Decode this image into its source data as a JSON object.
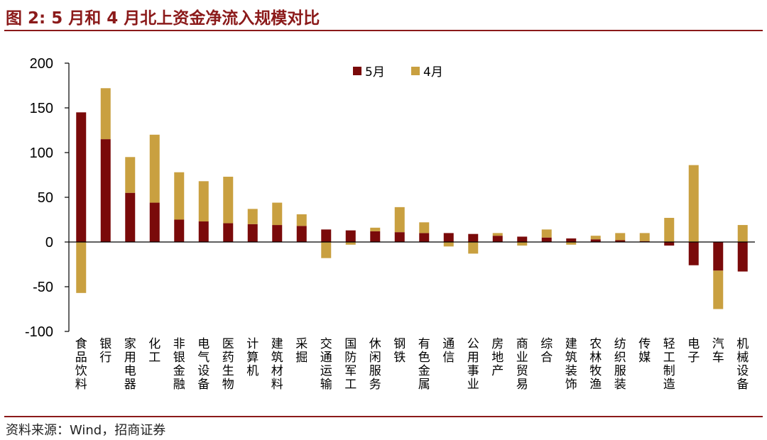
{
  "title": "图 2:  5 月和 4 月北上资金净流入规模对比",
  "source": "资料来源：Wind，招商证券",
  "colors": {
    "may": "#7A0A0A",
    "april": "#C9A040",
    "brand": "#8B1A1A"
  },
  "chart_data": {
    "type": "bar",
    "stacked": true,
    "categories": [
      "食品饮料",
      "银行",
      "家用电器",
      "化工",
      "非银金融",
      "电气设备",
      "医药生物",
      "计算机",
      "建筑材料",
      "采掘",
      "交通运输",
      "国防军工",
      "休闲服务",
      "钢铁",
      "有色金属",
      "通信",
      "公用事业",
      "房地产",
      "商业贸易",
      "综合",
      "建筑装饰",
      "农林牧渔",
      "纺织服装",
      "传媒",
      "轻工制造",
      "电子",
      "汽车",
      "机械设备"
    ],
    "series": [
      {
        "name": "5月",
        "values": [
          145,
          115,
          55,
          44,
          25,
          23,
          21,
          20,
          19,
          18,
          14,
          13,
          12,
          11,
          10,
          10,
          9,
          7,
          6,
          5,
          4,
          3,
          2,
          1,
          -4,
          -26,
          -32,
          -33
        ]
      },
      {
        "name": "4月",
        "values": [
          -57,
          57,
          40,
          76,
          53,
          45,
          52,
          17,
          25,
          13,
          -18,
          -3,
          4,
          28,
          12,
          -5,
          -13,
          3,
          -4,
          9,
          -3,
          4,
          8,
          9,
          27,
          86,
          -43,
          19
        ]
      }
    ],
    "ylim": [
      -100,
      200
    ],
    "yticks": [
      -100,
      -50,
      0,
      50,
      100,
      150,
      200
    ],
    "legend": "top-center"
  }
}
